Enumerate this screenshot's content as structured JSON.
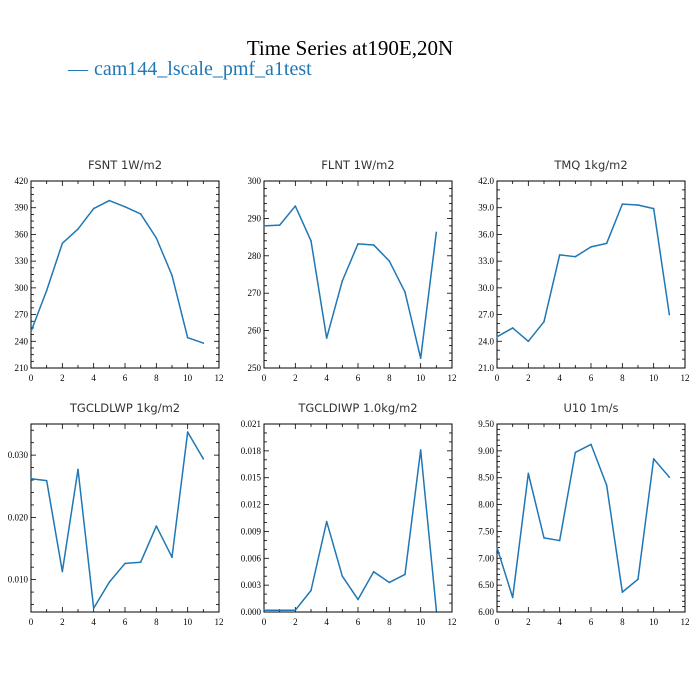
{
  "figure": {
    "title": "Time Series at190E,20N",
    "legend": [
      {
        "label": "cam144_lscale_pmf_a1test",
        "color": "#1f77b4"
      }
    ]
  },
  "chart_data": [
    {
      "type": "line",
      "title": "FSNT   1W/m2",
      "x": [
        0,
        1,
        2,
        3,
        4,
        5,
        6,
        7,
        8,
        9,
        10,
        11
      ],
      "series": [
        {
          "values": [
            251,
            297,
            350,
            366,
            389,
            398,
            391,
            383,
            356,
            314,
            244,
            238
          ]
        }
      ],
      "xlim": [
        0,
        12
      ],
      "ylim": [
        210,
        420
      ],
      "xticks": [
        "0",
        "2",
        "4",
        "6",
        "8",
        "10",
        "12"
      ],
      "yticks": [
        "210",
        "240",
        "270",
        "300",
        "330",
        "360",
        "390",
        "420"
      ],
      "yminor": 3,
      "xminor": 1,
      "grid": false
    },
    {
      "type": "line",
      "title": "FLNT   1W/m2",
      "x": [
        0,
        1,
        2,
        3,
        4,
        5,
        6,
        7,
        8,
        9,
        10,
        11
      ],
      "series": [
        {
          "values": [
            288,
            288.2,
            293.3,
            284,
            258,
            273.3,
            283.2,
            282.9,
            278.6,
            270.3,
            252.6,
            286.3
          ]
        }
      ],
      "xlim": [
        0,
        12
      ],
      "ylim": [
        250,
        300
      ],
      "xticks": [
        "0",
        "2",
        "4",
        "6",
        "8",
        "10",
        "12"
      ],
      "yticks": [
        "250",
        "260",
        "270",
        "280",
        "290",
        "300"
      ],
      "yminor": 4,
      "xminor": 1,
      "grid": false
    },
    {
      "type": "line",
      "title": "TMQ   1kg/m2",
      "x": [
        0,
        1,
        2,
        3,
        4,
        5,
        6,
        7,
        8,
        9,
        10,
        11
      ],
      "series": [
        {
          "values": [
            24.5,
            25.5,
            24.0,
            26.2,
            33.7,
            33.5,
            34.6,
            35.0,
            39.4,
            39.3,
            38.9,
            27.0
          ]
        }
      ],
      "xlim": [
        0,
        12
      ],
      "ylim": [
        21,
        42
      ],
      "xticks": [
        "0",
        "2",
        "4",
        "6",
        "8",
        "10",
        "12"
      ],
      "yticks": [
        "21.0",
        "24.0",
        "27.0",
        "30.0",
        "33.0",
        "36.0",
        "39.0",
        "42.0"
      ],
      "yminor": 2,
      "xminor": 1,
      "grid": false
    },
    {
      "type": "line",
      "title": "TGCLDLWP   1kg/m2",
      "x": [
        0,
        1,
        2,
        3,
        4,
        5,
        6,
        7,
        8,
        9,
        10,
        11
      ],
      "series": [
        {
          "values": [
            0.0262,
            0.0259,
            0.0113,
            0.0277,
            0.0054,
            0.0096,
            0.0126,
            0.0128,
            0.0186,
            0.0136,
            0.0337,
            0.0294
          ]
        }
      ],
      "xlim": [
        0,
        12
      ],
      "ylim": [
        0.0048,
        0.035
      ],
      "xticks": [
        "0",
        "2",
        "4",
        "6",
        "8",
        "10",
        "12"
      ],
      "yticks": [
        "0.010",
        "0.020",
        "0.030"
      ],
      "ytick_values": [
        0.01,
        0.02,
        0.03
      ],
      "yminor": 4,
      "xminor": 1,
      "grid": false
    },
    {
      "type": "line",
      "title": "TGCLDIWP   1.0kg/m2",
      "x": [
        0,
        1,
        2,
        3,
        4,
        5,
        6,
        7,
        8,
        9,
        10,
        11
      ],
      "series": [
        {
          "values": [
            0.0002,
            0.0002,
            0.0002,
            0.0024,
            0.0101,
            0.004,
            0.0014,
            0.0045,
            0.0033,
            0.0042,
            0.0181,
            0.0002
          ]
        }
      ],
      "xlim": [
        0,
        12
      ],
      "ylim": [
        0,
        0.021
      ],
      "xticks": [
        "0",
        "2",
        "4",
        "6",
        "8",
        "10",
        "12"
      ],
      "yticks": [
        "0.000",
        "0.003",
        "0.006",
        "0.009",
        "0.012",
        "0.015",
        "0.018",
        "0.021"
      ],
      "yminor": 2,
      "xminor": 1,
      "grid": false
    },
    {
      "type": "line",
      "title": "U10   1m/s",
      "x": [
        0,
        1,
        2,
        3,
        4,
        5,
        6,
        7,
        8,
        9,
        10,
        11
      ],
      "series": [
        {
          "values": [
            7.2,
            6.27,
            8.58,
            7.38,
            7.33,
            8.97,
            9.12,
            8.36,
            6.37,
            6.61,
            8.85,
            8.51
          ]
        }
      ],
      "xlim": [
        0,
        12
      ],
      "ylim": [
        6.0,
        9.5
      ],
      "xticks": [
        "0",
        "2",
        "4",
        "6",
        "8",
        "10",
        "12"
      ],
      "yticks": [
        "6.00",
        "6.50",
        "7.00",
        "7.50",
        "8.00",
        "8.50",
        "9.00",
        "9.50"
      ],
      "yminor": 4,
      "xminor": 1,
      "grid": false
    }
  ]
}
